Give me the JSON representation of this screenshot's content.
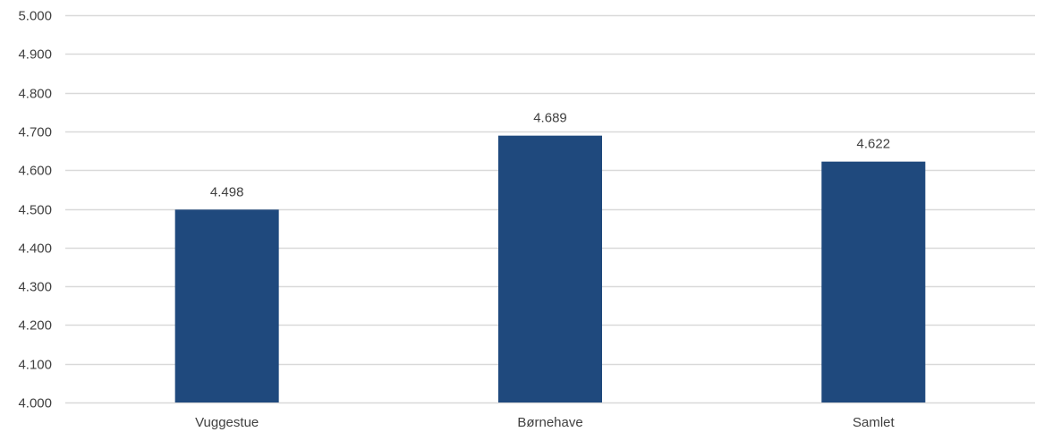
{
  "chart_data": {
    "type": "bar",
    "categories": [
      "Vuggestue",
      "Børnehave",
      "Samlet"
    ],
    "values": [
      4.498,
      4.689,
      4.622
    ],
    "data_labels": [
      "4.498",
      "4.689",
      "4.622"
    ],
    "ylim": [
      4.0,
      5.0
    ],
    "yticks": [
      4.0,
      4.1,
      4.2,
      4.3,
      4.4,
      4.5,
      4.6,
      4.7,
      4.8,
      4.9,
      5.0
    ],
    "ytick_labels": [
      "4.000",
      "4.100",
      "4.200",
      "4.300",
      "4.400",
      "4.500",
      "4.600",
      "4.700",
      "4.800",
      "4.900",
      "5.000"
    ],
    "grid": true,
    "legend": "none",
    "colors": {
      "bar": "#1F497D",
      "grid": "#D9D9D9",
      "text": "#404040"
    }
  }
}
